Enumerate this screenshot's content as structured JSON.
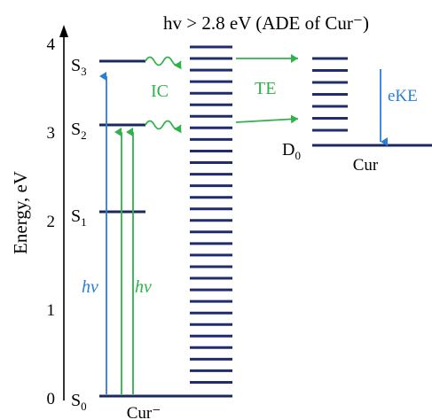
{
  "title": "hv > 2.8 eV (ADE of Cur⁻)",
  "y_axis": {
    "label": "Energy, eV",
    "ticks": [
      "0",
      "1",
      "2",
      "3",
      "4"
    ]
  },
  "levels": {
    "s0": "S",
    "s0_sub": "0",
    "s1": "S",
    "s1_sub": "1",
    "s2": "S",
    "s2_sub": "2",
    "s3": "S",
    "s3_sub": "3",
    "d0": "D",
    "d0_sub": "0"
  },
  "labels": {
    "anion": "Cur⁻",
    "neutral": "Cur",
    "ic": "IC",
    "te": "TE",
    "ekE": "eKE",
    "hv_blue": "hv",
    "hv_green": "hv"
  },
  "colors": {
    "level_lines": "#1a2a5e",
    "vib_lines": "#1f2d6e",
    "blue_arrow": "#2a7fd4",
    "green_arrow": "#2db34a",
    "text": "#000000"
  }
}
